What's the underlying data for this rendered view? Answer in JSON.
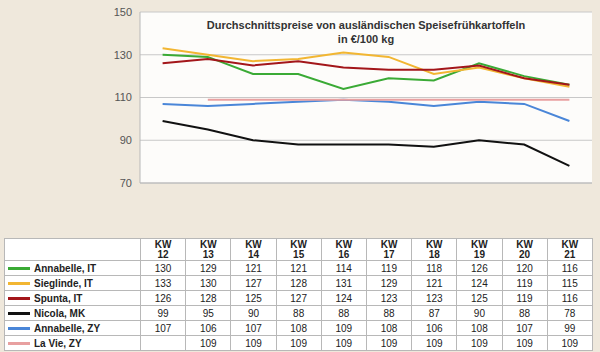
{
  "chart_data": {
    "type": "line",
    "title": "Durchschnittspreise von ausländischen Speisefrühkartoffeln",
    "subtitle": "in €/100 kg",
    "categories": [
      "KW 12",
      "KW 13",
      "KW 14",
      "KW 15",
      "KW 16",
      "KW 17",
      "KW 18",
      "KW 19",
      "KW 20",
      "KW 21"
    ],
    "series": [
      {
        "name": "Annabelle, IT",
        "color": "#3aaa35",
        "values": [
          130,
          129,
          121,
          121,
          114,
          119,
          118,
          126,
          120,
          116
        ]
      },
      {
        "name": "Sieglinde, IT",
        "color": "#f2b632",
        "values": [
          133,
          130,
          127,
          128,
          131,
          129,
          121,
          124,
          119,
          115
        ]
      },
      {
        "name": "Spunta, IT",
        "color": "#a3161a",
        "values": [
          126,
          128,
          125,
          127,
          124,
          123,
          123,
          125,
          119,
          116
        ]
      },
      {
        "name": "Nicola, MK",
        "color": "#111111",
        "values": [
          99,
          95,
          90,
          88,
          88,
          88,
          87,
          90,
          88,
          78
        ]
      },
      {
        "name": "Annabelle, ZY",
        "color": "#4a86d8",
        "values": [
          107,
          106,
          107,
          108,
          109,
          108,
          106,
          108,
          107,
          99
        ]
      },
      {
        "name": "La Vie, ZY",
        "color": "#e8a0a0",
        "values": [
          null,
          109,
          109,
          109,
          109,
          109,
          109,
          109,
          109,
          109
        ]
      }
    ],
    "ylim": [
      70,
      150
    ],
    "yticks": [
      70,
      90,
      110,
      130,
      150
    ],
    "grid": true
  }
}
